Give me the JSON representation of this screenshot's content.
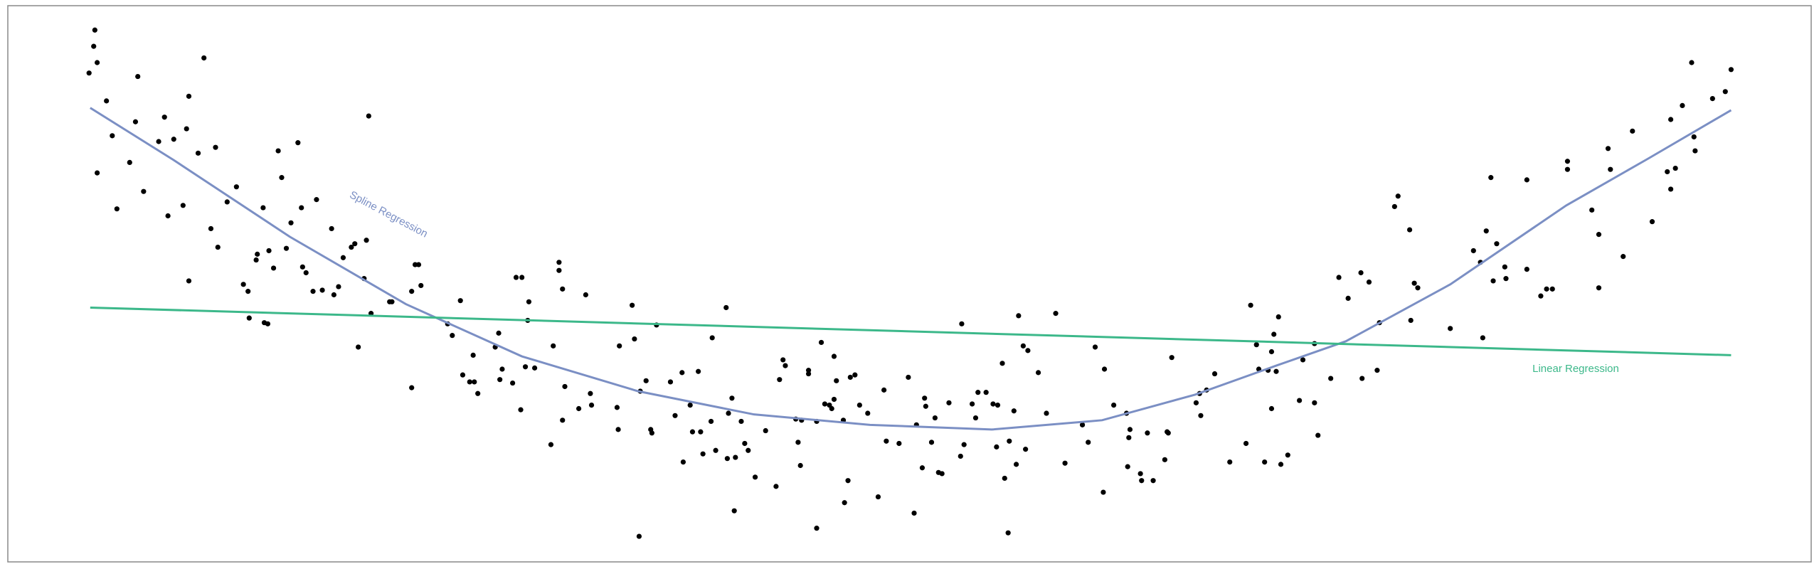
{
  "chart_data": {
    "type": "scatter",
    "color": "#000000",
    "xlim": [
      7,
      1561
    ],
    "ylim": [
      0,
      479
    ],
    "x": [
      77,
      82,
      81,
      84,
      92,
      84,
      97,
      101,
      112,
      119,
      117,
      124,
      137,
      142,
      145,
      150,
      158,
      161,
      163,
      163,
      171,
      176,
      182,
      186,
      188,
      196,
      204,
      210,
      214,
      215,
      222,
      221,
      227,
      228,
      231,
      232,
      236,
      240,
      243,
      247,
      251,
      257,
      260,
      261,
      264,
      270,
      273,
      278,
      286,
      288,
      292,
      296,
      303,
      306,
      309,
      314,
      316,
      318,
      320,
      336,
      338,
      355,
      355,
      358,
      361,
      363,
      386,
      390,
      397,
      399,
      405,
      408,
      409,
      412,
      427,
      430,
      431,
      433,
      442,
      445,
      450,
      449,
      453,
      455,
      456,
      461,
      475,
      477,
      482,
      482,
      485,
      485,
      487,
      499,
      505,
      509,
      510,
      532,
      534,
      533,
      545,
      547,
      551,
      552,
      557,
      561,
      562,
      566,
      578,
      582,
      588,
      589,
      595,
      597,
      602,
      604,
      606,
      613,
      614,
      617,
      626,
      627,
      628,
      631,
      633,
      634,
      639,
      642,
      645,
      651,
      660,
      669,
      672,
      675,
      677,
      686,
      688,
      690,
      691,
      697,
      697,
      704,
      704,
      708,
      711,
      715,
      717,
      719,
      719,
      721,
      727,
      728,
      731,
      733,
      737,
      741,
      748,
      757,
      762,
      764,
      775,
      783,
      788,
      790,
      795,
      797,
      798,
      803,
      806,
      809,
      812,
      818,
      828,
      829,
      831,
      838,
      841,
      843,
      850,
      856,
      859,
      860,
      864,
      866,
      869,
      870,
      874,
      876,
      878,
      882,
      884,
      886,
      895,
      902,
      910,
      918,
      933,
      938,
      944,
      951,
      952,
      960,
      971,
      972,
      973,
      974,
      983,
      984,
      989,
      994,
      1004,
      1006,
      1007,
      1010,
      1031,
      1034,
      1035,
      1040,
      1047,
      1060,
      1074,
      1078,
      1083,
      1085,
      1090,
      1093,
      1096,
      1096,
      1098,
      1100,
      1102,
      1104,
      1110,
      1120,
      1123,
      1133,
      1133,
      1136,
      1147,
      1154,
      1162,
      1173,
      1174,
      1180,
      1187,
      1189,
      1202,
      1205,
      1215,
      1216,
      1219,
      1222,
      1250,
      1270,
      1276,
      1278,
      1281,
      1285,
      1287,
      1290,
      1297,
      1298,
      1316,
      1316,
      1328,
      1333,
      1338,
      1351,
      1351,
      1372,
      1378,
      1378,
      1386,
      1388,
      1399,
      1407,
      1424,
      1437,
      1440,
      1440,
      1444,
      1450,
      1458,
      1460,
      1461,
      1476,
      1487,
      1492
    ],
    "y": [
      421,
      458,
      444,
      430,
      397,
      335,
      367,
      304,
      344,
      418,
      379,
      319,
      362,
      383,
      298,
      364,
      307,
      373,
      401,
      242,
      352,
      434,
      287,
      357,
      271,
      310,
      323,
      239,
      233,
      210,
      265,
      260,
      305,
      206,
      205,
      268,
      253,
      354,
      331,
      270,
      292,
      361,
      305,
      254,
      249,
      233,
      312,
      234,
      287,
      230,
      237,
      262,
      271,
      274,
      185,
      244,
      277,
      384,
      214,
      224,
      224,
      150,
      233,
      256,
      256,
      238,
      205,
      195,
      225,
      161,
      155,
      178,
      155,
      145,
      185,
      197,
      157,
      166,
      154,
      245,
      245,
      131,
      168,
      208,
      224,
      167,
      101,
      186,
      258,
      251,
      235,
      122,
      151,
      132,
      230,
      145,
      135,
      133,
      186,
      114,
      221,
      192,
      22,
      147,
      156,
      114,
      111,
      204,
      155,
      126,
      163,
      86,
      135,
      112,
      164,
      112,
      93,
      121,
      193,
      96,
      219,
      89,
      128,
      141,
      44,
      90,
      121,
      102,
      96,
      73,
      113,
      65,
      157,
      174,
      169,
      123,
      103,
      83,
      122,
      165,
      162,
      29,
      121,
      189,
      136,
      135,
      132,
      177,
      140,
      156,
      122,
      51,
      70,
      159,
      161,
      135,
      128,
      56,
      148,
      104,
      102,
      159,
      42,
      118,
      81,
      141,
      134,
      103,
      124,
      77,
      76,
      137,
      91,
      205,
      101,
      136,
      124,
      146,
      146,
      136,
      99,
      135,
      171,
      72,
      25,
      104,
      130,
      84,
      212,
      186,
      97,
      182,
      163,
      128,
      214,
      85,
      118,
      103,
      185,
      60,
      166,
      135,
      128,
      82,
      107,
      114,
      76,
      70,
      111,
      70,
      88,
      112,
      111,
      176,
      137,
      145,
      126,
      148,
      162,
      86,
      102,
      221,
      187,
      166,
      86,
      165,
      132,
      181,
      196,
      164,
      211,
      84,
      92,
      139,
      174,
      188,
      137,
      109,
      158,
      245,
      227,
      249,
      158,
      241,
      165,
      206,
      306,
      315,
      286,
      208,
      240,
      236,
      201,
      268,
      258,
      193,
      285,
      331,
      242,
      274,
      254,
      244,
      329,
      252,
      229,
      235,
      235,
      345,
      338,
      303,
      282,
      236,
      356,
      338,
      263,
      371,
      293,
      336,
      321,
      381,
      339,
      393,
      430,
      366,
      354,
      399,
      405,
      424
    ],
    "lines": [
      {
        "name": "Spline Regression",
        "color": "#7b8fc4",
        "x": [
          78,
          150,
          250,
          350,
          450,
          550,
          650,
          750,
          855,
          950,
          1030,
          1100,
          1160,
          1250,
          1350,
          1420,
          1492
        ],
        "y": [
          391,
          346,
          280,
          222,
          177,
          147,
          127,
          118,
          114,
          122,
          144,
          169,
          190,
          239,
          307,
          347,
          389
        ]
      },
      {
        "name": "Linear Regression",
        "color": "#3cb88a",
        "x": [
          78,
          1492
        ],
        "y": [
          219,
          178
        ]
      }
    ]
  }
}
